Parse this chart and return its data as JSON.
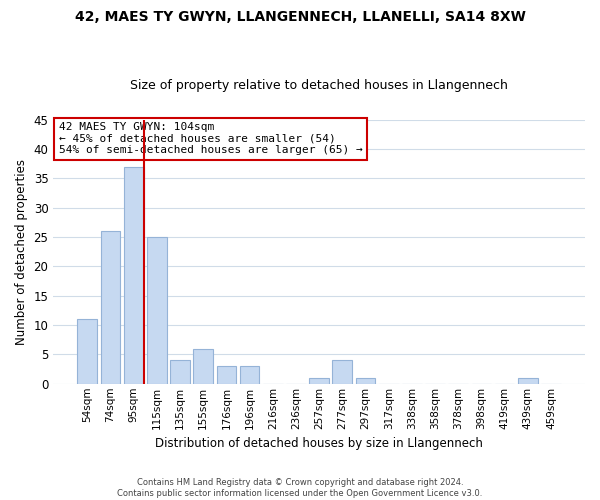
{
  "title": "42, MAES TY GWYN, LLANGENNECH, LLANELLI, SA14 8XW",
  "subtitle": "Size of property relative to detached houses in Llangennech",
  "xlabel": "Distribution of detached houses by size in Llangennech",
  "ylabel": "Number of detached properties",
  "bar_labels": [
    "54sqm",
    "74sqm",
    "95sqm",
    "115sqm",
    "135sqm",
    "155sqm",
    "176sqm",
    "196sqm",
    "216sqm",
    "236sqm",
    "257sqm",
    "277sqm",
    "297sqm",
    "317sqm",
    "338sqm",
    "358sqm",
    "378sqm",
    "398sqm",
    "419sqm",
    "439sqm",
    "459sqm"
  ],
  "bar_values": [
    11,
    26,
    37,
    25,
    4,
    6,
    3,
    3,
    0,
    0,
    1,
    4,
    1,
    0,
    0,
    0,
    0,
    0,
    0,
    1,
    0
  ],
  "bar_color": "#c6d9f1",
  "bar_edge_color": "#95b3d7",
  "highlight_line_bar_idx": 2,
  "highlight_line_color": "#cc0000",
  "annotation_line1": "42 MAES TY GWYN: 104sqm",
  "annotation_line2": "← 45% of detached houses are smaller (54)",
  "annotation_line3": "54% of semi-detached houses are larger (65) →",
  "annotation_box_color": "#ffffff",
  "annotation_box_edge": "#cc0000",
  "ylim": [
    0,
    45
  ],
  "yticks": [
    0,
    5,
    10,
    15,
    20,
    25,
    30,
    35,
    40,
    45
  ],
  "footer_line1": "Contains HM Land Registry data © Crown copyright and database right 2024.",
  "footer_line2": "Contains public sector information licensed under the Open Government Licence v3.0.",
  "bg_color": "#ffffff",
  "grid_color": "#d0dce8"
}
